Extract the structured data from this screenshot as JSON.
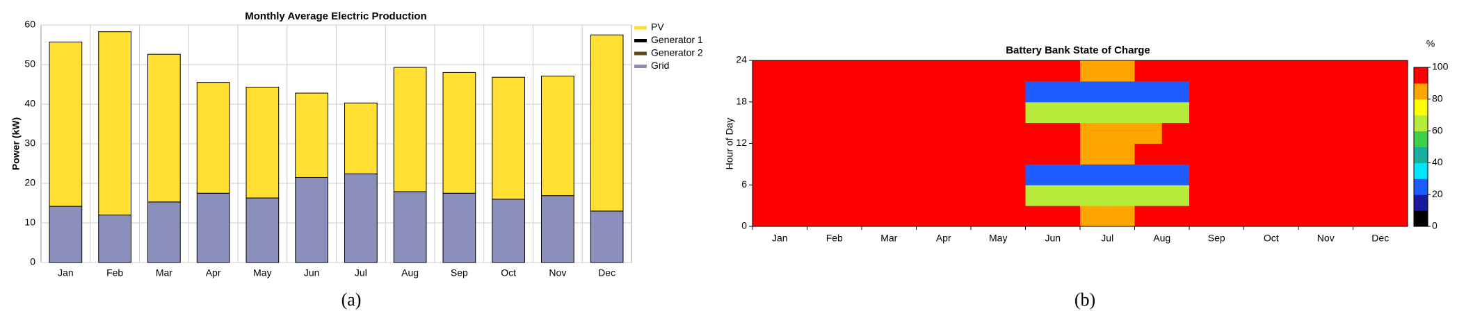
{
  "chart_data": [
    {
      "type": "bar",
      "title": "Monthly Average Electric Production",
      "y_label": "Power (kW)",
      "categories": [
        "Jan",
        "Feb",
        "Mar",
        "Apr",
        "May",
        "Jun",
        "Jul",
        "Aug",
        "Sep",
        "Oct",
        "Nov",
        "Dec"
      ],
      "series": [
        {
          "name": "PV",
          "color": "#ffe033",
          "values": [
            41.5,
            46.3,
            37.3,
            28,
            28,
            21.3,
            17.9,
            31.4,
            30.5,
            30.8,
            30.2,
            44.5
          ]
        },
        {
          "name": "Generator 1",
          "color": "#000000",
          "values": [
            0,
            0,
            0,
            0,
            0,
            0,
            0,
            0,
            0,
            0,
            0,
            0
          ]
        },
        {
          "name": "Generator 2",
          "color": "#5c4a1a",
          "values": [
            0,
            0,
            0,
            0,
            0,
            0,
            0,
            0,
            0,
            0,
            0,
            0
          ]
        },
        {
          "name": "Grid",
          "color": "#8a90bb",
          "values": [
            14.2,
            12,
            15.3,
            17.5,
            16.3,
            21.5,
            22.4,
            17.9,
            17.5,
            16,
            16.9,
            13
          ]
        }
      ],
      "ylim": [
        0,
        60
      ],
      "yticks": [
        0,
        10,
        20,
        30,
        40,
        50,
        60
      ],
      "grid": true,
      "legend": "right",
      "caption": "(a)"
    },
    {
      "type": "heatmap",
      "title": "Battery Bank State of Charge",
      "y_label": "Hour of Day",
      "colorbar_label": "%",
      "categories": [
        "Jan",
        "Feb",
        "Mar",
        "Apr",
        "May",
        "Jun",
        "Jul",
        "Aug",
        "Sep",
        "Oct",
        "Nov",
        "Dec"
      ],
      "ylim": [
        0,
        24
      ],
      "yticks": [
        0,
        6,
        12,
        18,
        24
      ],
      "zlim": [
        0,
        100
      ],
      "zticks": [
        0,
        20,
        40,
        60,
        80,
        100
      ],
      "colors": [
        "#000000",
        "#1a1aa0",
        "#1f5cff",
        "#00e5ff",
        "#16b0a0",
        "#3fd04a",
        "#b8ec3a",
        "#ffff00",
        "#ffa500",
        "#ff0000"
      ],
      "z": [
        [
          100,
          100,
          100,
          100,
          100,
          100,
          100,
          100,
          100,
          100,
          100,
          100,
          85,
          85,
          100,
          100,
          100,
          100,
          100,
          100,
          100,
          100,
          100,
          100
        ],
        [
          100,
          100,
          100,
          100,
          100,
          100,
          100,
          100,
          100,
          100,
          70,
          70,
          70,
          70,
          70,
          70,
          100,
          100,
          100,
          100,
          100,
          100,
          100,
          100
        ],
        [
          100,
          100,
          100,
          100,
          100,
          100,
          100,
          100,
          100,
          100,
          30,
          30,
          30,
          30,
          30,
          30,
          100,
          100,
          100,
          100,
          100,
          100,
          100,
          100
        ],
        [
          100,
          100,
          100,
          100,
          100,
          100,
          100,
          100,
          100,
          100,
          100,
          100,
          85,
          85,
          100,
          100,
          100,
          100,
          100,
          100,
          100,
          100,
          100,
          100
        ],
        [
          100,
          100,
          100,
          100,
          100,
          100,
          100,
          100,
          100,
          100,
          100,
          100,
          85,
          85,
          90,
          100,
          100,
          100,
          100,
          100,
          100,
          100,
          100,
          100
        ],
        [
          100,
          100,
          100,
          100,
          100,
          100,
          100,
          100,
          100,
          100,
          70,
          70,
          70,
          70,
          70,
          70,
          100,
          100,
          100,
          100,
          100,
          100,
          100,
          100
        ],
        [
          100,
          100,
          100,
          100,
          100,
          100,
          100,
          100,
          100,
          100,
          30,
          30,
          30,
          30,
          30,
          30,
          100,
          100,
          100,
          100,
          100,
          100,
          100,
          100
        ],
        [
          100,
          100,
          100,
          100,
          100,
          100,
          100,
          100,
          100,
          100,
          100,
          100,
          85,
          85,
          100,
          100,
          100,
          100,
          100,
          100,
          100,
          100,
          100,
          100
        ]
      ],
      "caption": "(b)"
    }
  ]
}
